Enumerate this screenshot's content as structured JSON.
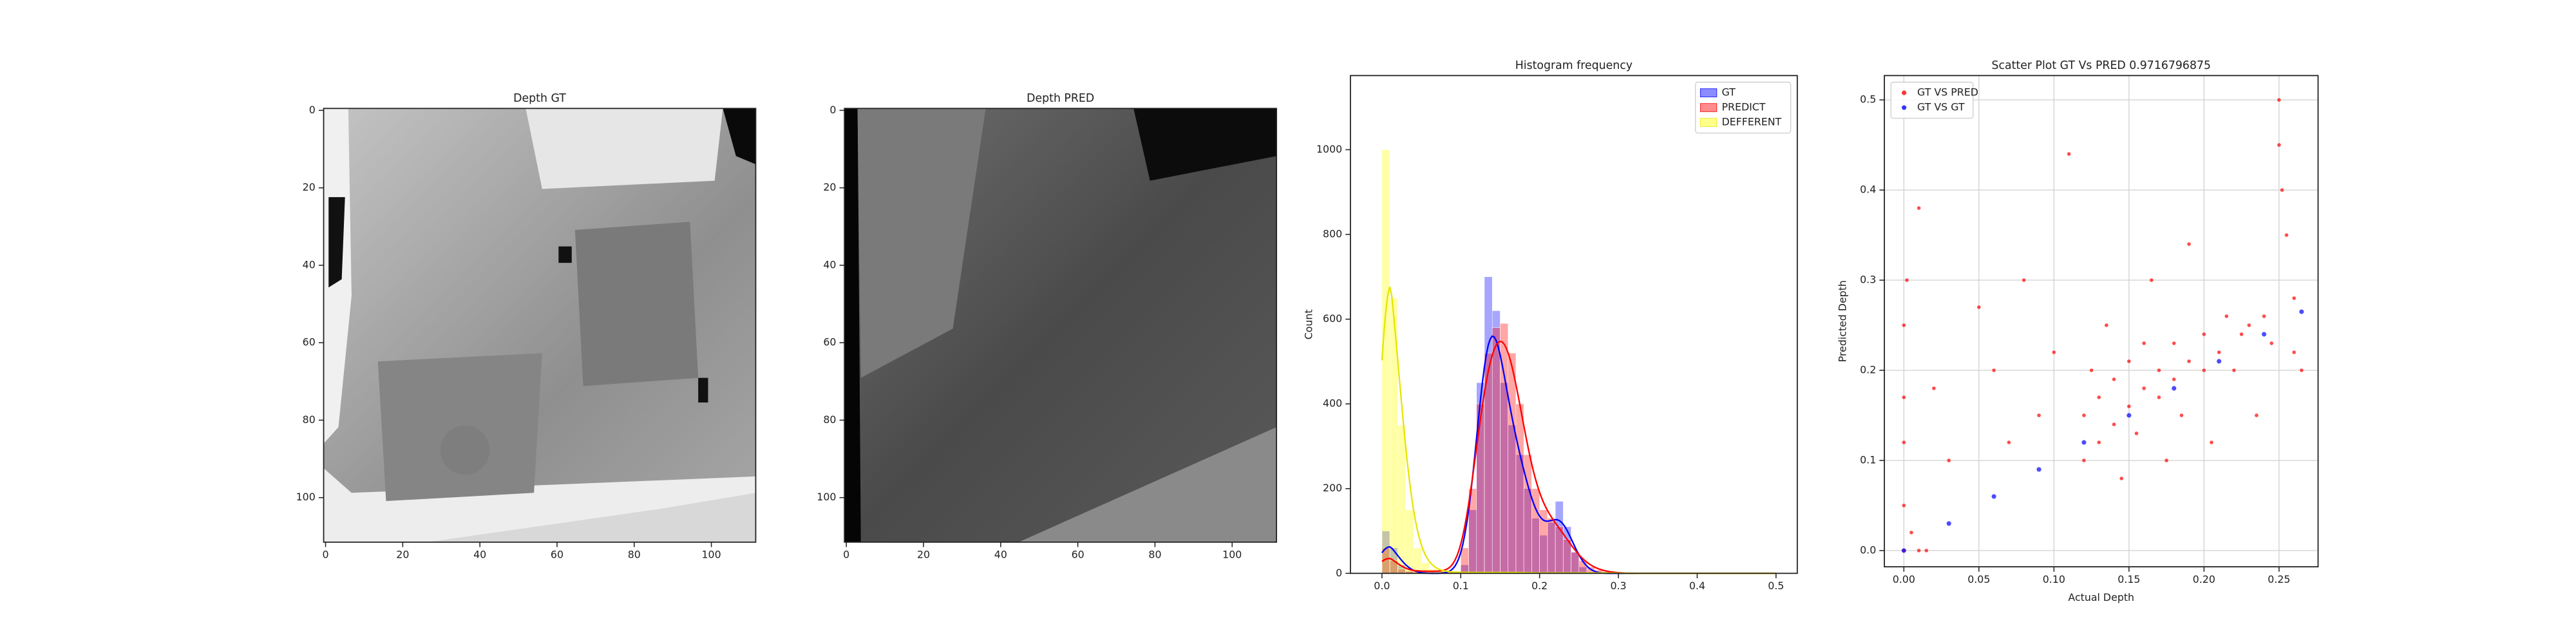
{
  "chart_data": [
    {
      "type": "image",
      "title": "Depth GT",
      "xlim": [
        -0.5,
        111.5
      ],
      "ylim": [
        111.5,
        -0.5
      ],
      "xticks": [
        0,
        20,
        40,
        60,
        80,
        100
      ],
      "yticks": [
        0,
        20,
        40,
        60,
        80,
        100
      ]
    },
    {
      "type": "image",
      "title": "Depth PRED",
      "xlim": [
        -0.5,
        111.5
      ],
      "ylim": [
        111.5,
        -0.5
      ],
      "xticks": [
        0,
        20,
        40,
        60,
        80,
        100
      ],
      "yticks": [
        0,
        20,
        40,
        60,
        80,
        100
      ]
    },
    {
      "type": "histogram",
      "title": "Histogram frequency",
      "ylabel": "Count",
      "legend": "upper right",
      "bins": [
        0,
        0.01,
        0.02,
        0.03,
        0.04,
        0.05,
        0.06,
        0.07,
        0.08,
        0.09,
        0.1,
        0.11,
        0.12,
        0.13,
        0.14,
        0.15,
        0.16,
        0.17,
        0.18,
        0.19,
        0.2,
        0.21,
        0.22,
        0.23,
        0.24,
        0.25,
        0.26,
        0.27,
        0.28,
        0.29,
        0.3,
        0.31,
        0.32,
        0.33,
        0.34,
        0.35,
        0.36,
        0.37,
        0.38,
        0.39,
        0.4,
        0.41,
        0.42,
        0.43,
        0.44,
        0.45,
        0.46,
        0.47,
        0.48,
        0.49,
        0.5
      ],
      "series": [
        {
          "name": "GT",
          "color": "#0000ff",
          "values": [
            100,
            60,
            20,
            5,
            0,
            0,
            0,
            0,
            0,
            0,
            20,
            150,
            450,
            700,
            620,
            450,
            350,
            280,
            200,
            130,
            90,
            120,
            170,
            110,
            50,
            15,
            0,
            0,
            0,
            0,
            0,
            0,
            0,
            0,
            0,
            0,
            0,
            0,
            0,
            0,
            0,
            0,
            0,
            0,
            0,
            0,
            0,
            0,
            0,
            0
          ]
        },
        {
          "name": "PREDICT",
          "color": "#ff0000",
          "values": [
            60,
            30,
            10,
            5,
            5,
            5,
            5,
            5,
            5,
            5,
            60,
            200,
            400,
            520,
            580,
            590,
            520,
            400,
            280,
            200,
            150,
            130,
            110,
            80,
            50,
            30,
            15,
            8,
            4,
            2,
            0,
            0,
            0,
            0,
            0,
            0,
            0,
            0,
            0,
            0,
            0,
            0,
            0,
            0,
            0,
            0,
            0,
            0,
            0,
            0
          ]
        },
        {
          "name": "DEFFERENT",
          "color": "#ffff00",
          "values": [
            1000,
            650,
            350,
            150,
            60,
            25,
            10,
            5,
            3,
            2,
            2,
            2,
            2,
            2,
            2,
            2,
            2,
            2,
            1,
            1,
            1,
            1,
            1,
            1,
            1,
            1,
            1,
            1,
            1,
            1,
            0,
            0,
            0,
            0,
            0,
            0,
            0,
            0,
            0,
            0,
            0,
            0,
            0,
            0,
            0,
            0,
            0,
            0,
            0,
            0
          ]
        }
      ],
      "xlim": [
        -0.04,
        0.527
      ],
      "ylim": [
        0,
        1175
      ],
      "xticks": [
        {
          "value": 0,
          "label": "0.0"
        },
        {
          "value": 0.1,
          "label": "0.1"
        },
        {
          "value": 0.2,
          "label": "0.2"
        },
        {
          "value": 0.3,
          "label": "0.3"
        },
        {
          "value": 0.4,
          "label": "0.4"
        },
        {
          "value": 0.5,
          "label": "0.5"
        }
      ],
      "yticks": [
        0,
        200,
        400,
        600,
        800,
        1000
      ]
    },
    {
      "type": "scatter",
      "title": "Scatter Plot GT Vs PRED 0.9716796875",
      "xlabel": "Actual Depth",
      "ylabel": "Predicted Depth",
      "legend": "upper left",
      "grid": true,
      "series": [
        {
          "name": "GT VS PRED",
          "color": "#ff0000",
          "x": [
            0,
            0,
            0,
            0,
            0.002,
            0.005,
            0.01,
            0.02,
            0.03,
            0.05,
            0.06,
            0.07,
            0.08,
            0.09,
            0.1,
            0.11,
            0.12,
            0.12,
            0.125,
            0.13,
            0.13,
            0.135,
            0.14,
            0.14,
            0.145,
            0.15,
            0.15,
            0.155,
            0.16,
            0.16,
            0.165,
            0.17,
            0.17,
            0.175,
            0.18,
            0.18,
            0.185,
            0.19,
            0.19,
            0.2,
            0.2,
            0.205,
            0.21,
            0.215,
            0.22,
            0.225,
            0.23,
            0.235,
            0.24,
            0.245,
            0.25,
            0.25,
            0.252,
            0.255,
            0.26,
            0.26,
            0.265,
            0.01,
            0.015,
            0
          ],
          "values": [
            0.05,
            0.12,
            0.17,
            0.25,
            0.3,
            0.02,
            0.38,
            0.18,
            0.1,
            0.27,
            0.2,
            0.12,
            0.3,
            0.15,
            0.22,
            0.44,
            0.1,
            0.15,
            0.2,
            0.12,
            0.17,
            0.25,
            0.14,
            0.19,
            0.08,
            0.16,
            0.21,
            0.13,
            0.18,
            0.23,
            0.3,
            0.17,
            0.2,
            0.1,
            0.19,
            0.23,
            0.15,
            0.21,
            0.34,
            0.2,
            0.24,
            0.12,
            0.22,
            0.26,
            0.2,
            0.24,
            0.25,
            0.15,
            0.26,
            0.23,
            0.5,
            0.45,
            0.4,
            0.35,
            0.22,
            0.28,
            0.2,
            0,
            0,
            0
          ]
        },
        {
          "name": "GT VS GT",
          "color": "#0000ff",
          "x": [
            0,
            0.03,
            0.06,
            0.09,
            0.12,
            0.15,
            0.18,
            0.21,
            0.24,
            0.265
          ],
          "values": [
            0,
            0.03,
            0.06,
            0.09,
            0.12,
            0.15,
            0.18,
            0.21,
            0.24,
            0.265
          ]
        }
      ],
      "xlim": [
        -0.013,
        0.276
      ],
      "ylim": [
        -0.018,
        0.527
      ],
      "xticks": [
        {
          "value": 0,
          "label": "0.00"
        },
        {
          "value": 0.05,
          "label": "0.05"
        },
        {
          "value": 0.1,
          "label": "0.10"
        },
        {
          "value": 0.15,
          "label": "0.15"
        },
        {
          "value": 0.2,
          "label": "0.20"
        },
        {
          "value": 0.25,
          "label": "0.25"
        }
      ],
      "yticks": [
        {
          "value": 0,
          "label": "0.0"
        },
        {
          "value": 0.1,
          "label": "0.1"
        },
        {
          "value": 0.2,
          "label": "0.2"
        },
        {
          "value": 0.3,
          "label": "0.3"
        },
        {
          "value": 0.4,
          "label": "0.4"
        },
        {
          "value": 0.5,
          "label": "0.5"
        }
      ]
    }
  ]
}
